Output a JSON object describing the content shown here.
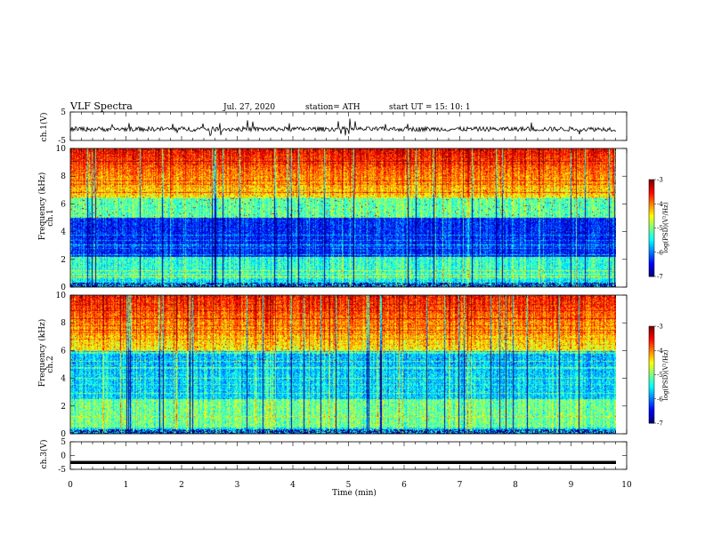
{
  "header": {
    "title": "VLF  Spectra",
    "date": "Jul.  27,  2020",
    "station": "station= ATH",
    "start": "start  UT  =    15: 10: 1"
  },
  "chart_data": [
    {
      "type": "line",
      "panel": "ch1-waveform",
      "ylabel": "ch.1(V)",
      "yticks": [
        "5",
        "-5"
      ],
      "ylim": [
        -5,
        5
      ],
      "xlim": [
        0,
        10
      ],
      "series": [
        {
          "approx_mean": -1,
          "approx_range": [
            -3,
            1
          ]
        }
      ],
      "color": "#000000"
    },
    {
      "type": "heatmap",
      "panel": "ch1-spectrogram",
      "ylabel_line1": "ch.1",
      "ylabel_line2": "Frequency  (kHz)",
      "yticks": [
        "0",
        "2",
        "4",
        "6",
        "8",
        "10"
      ],
      "ylim": [
        0,
        10
      ],
      "xlim": [
        0,
        10
      ],
      "colorbar": {
        "label": "log(PSD)(V²/Hz)",
        "ticks": [
          "-3",
          "-4",
          "-5",
          "-6",
          "-7"
        ],
        "range": [
          -7,
          -3
        ]
      }
    },
    {
      "type": "heatmap",
      "panel": "ch2-spectrogram",
      "ylabel_line1": "ch.2",
      "ylabel_line2": "Frequency  (kHz)",
      "yticks": [
        "0",
        "2",
        "4",
        "6",
        "8",
        "10"
      ],
      "ylim": [
        0,
        10
      ],
      "xlim": [
        0,
        10
      ],
      "colorbar": {
        "label": "log(PSD)(V²/Hz)",
        "ticks": [
          "-3",
          "-4",
          "-5",
          "-6",
          "-7"
        ],
        "range": [
          -7,
          -3
        ]
      }
    },
    {
      "type": "line",
      "panel": "ch3-waveform",
      "ylabel": "ch.3(V)",
      "yticks": [
        "5",
        "0",
        "-5"
      ],
      "ylim": [
        -5,
        5
      ],
      "xlim": [
        0,
        10
      ],
      "series": [
        {
          "approx_mean": -2.5
        }
      ],
      "color": "#000000"
    }
  ],
  "xaxis": {
    "label": "Time  (min)",
    "ticks": [
      "0",
      "1",
      "2",
      "3",
      "4",
      "5",
      "6",
      "7",
      "8",
      "9",
      "10"
    ]
  }
}
